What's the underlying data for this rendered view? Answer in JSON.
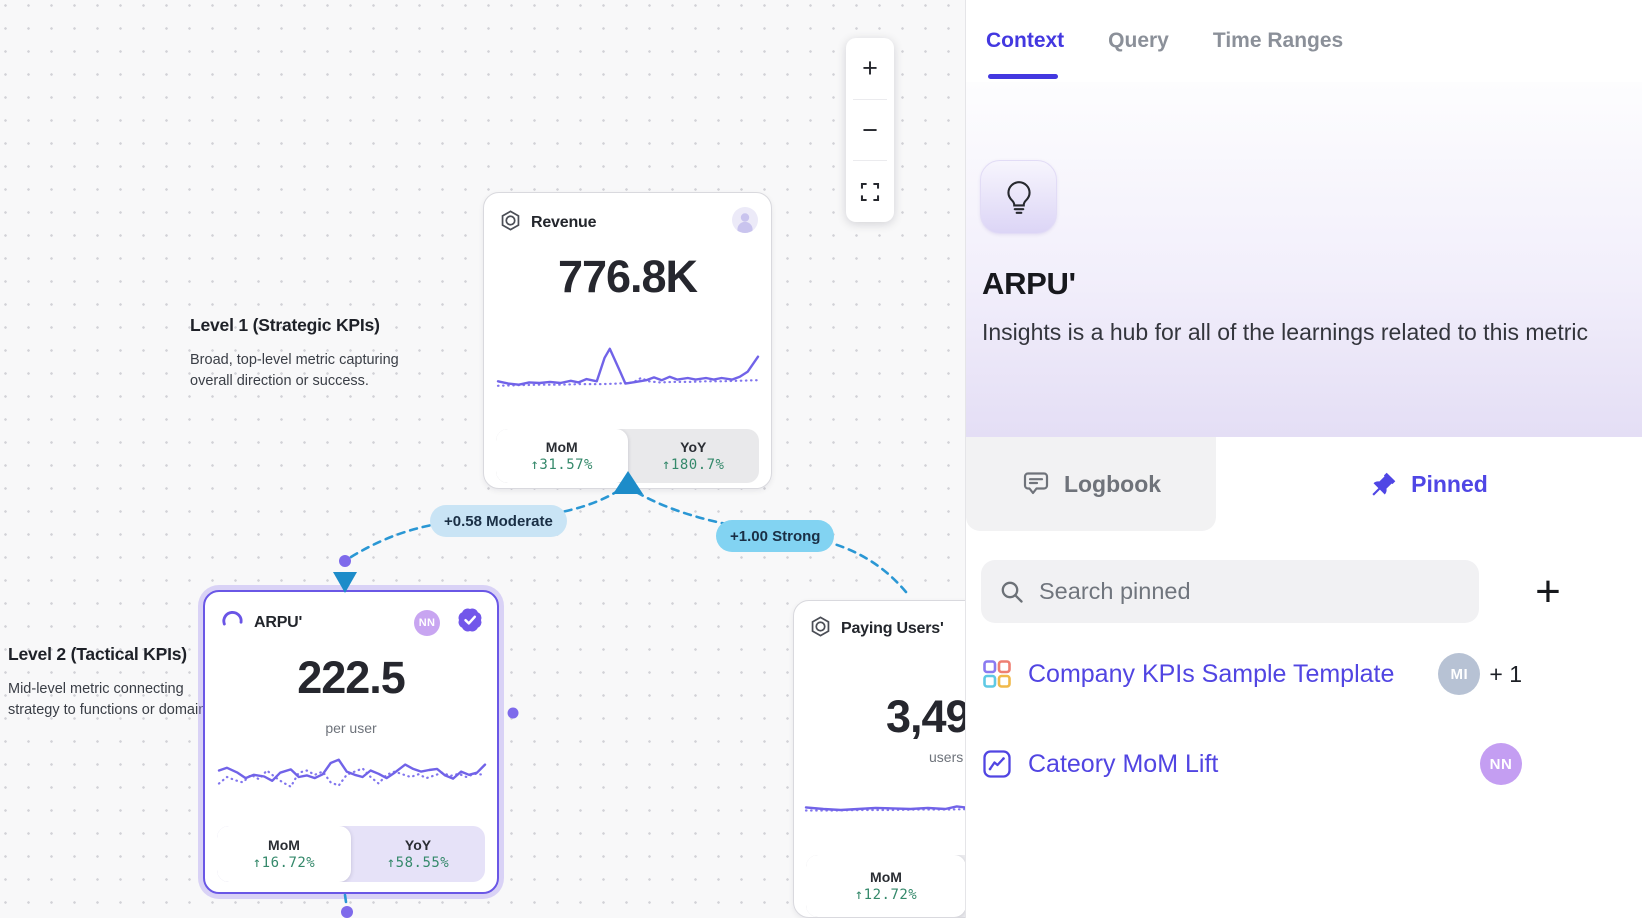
{
  "colors": {
    "accent_purple": "#4f46e5",
    "selected_card_border": "#6a57e6",
    "edge_blue": "#2a97d4",
    "positive_green": "#35896b",
    "badge_moderate_bg": "#c9e4f5",
    "badge_strong_bg": "#82d3f2",
    "sparkline_purple": "#7163e8"
  },
  "canvas": {
    "toolbar": {
      "zoom_in": "+",
      "zoom_out": "−",
      "fit_icon": "fit-view-icon"
    },
    "levels": {
      "level1": {
        "title": "Level 1 (Strategic KPIs)",
        "line1": "Broad, top-level metric capturing",
        "line2": "overall direction or success."
      },
      "level2": {
        "title": "Level 2 (Tactical KPIs)",
        "line1": "Mid-level metric connecting",
        "line2": "strategy to functions or domains."
      }
    },
    "edges": {
      "moderate": "+0.58 Moderate",
      "strong": "+1.00 Strong"
    },
    "cards": {
      "revenue": {
        "title": "Revenue",
        "value": "776.8K",
        "stats": {
          "mom_label": "MoM",
          "mom_delta": "↑31.57%",
          "yoy_label": "YoY",
          "yoy_delta": "↑180.7%"
        },
        "spark": {
          "solid": [
            [
              0,
              72
            ],
            [
              4,
              76
            ],
            [
              8,
              78
            ],
            [
              12,
              74
            ],
            [
              16,
              75
            ],
            [
              20,
              73
            ],
            [
              24,
              75
            ],
            [
              28,
              71
            ],
            [
              31,
              74
            ],
            [
              34,
              68
            ],
            [
              38,
              72
            ],
            [
              41,
              30
            ],
            [
              43,
              14
            ],
            [
              47,
              55
            ],
            [
              49,
              76
            ],
            [
              53,
              73
            ],
            [
              57,
              70
            ],
            [
              60,
              65
            ],
            [
              63,
              70
            ],
            [
              66,
              64
            ],
            [
              69,
              69
            ],
            [
              73,
              66
            ],
            [
              76,
              69
            ],
            [
              80,
              66
            ],
            [
              83,
              69
            ],
            [
              86,
              66
            ],
            [
              90,
              69
            ],
            [
              93,
              64
            ],
            [
              96,
              55
            ],
            [
              100,
              28
            ]
          ],
          "dotted": [
            [
              0,
              80
            ],
            [
              8,
              79
            ],
            [
              16,
              78
            ],
            [
              24,
              78
            ],
            [
              32,
              77
            ],
            [
              40,
              77
            ],
            [
              46,
              76
            ],
            [
              52,
              74
            ],
            [
              55,
              66
            ],
            [
              58,
              72
            ],
            [
              62,
              74
            ],
            [
              68,
              73
            ],
            [
              74,
              73
            ],
            [
              80,
              72
            ],
            [
              86,
              72
            ],
            [
              92,
              71
            ],
            [
              100,
              70
            ]
          ]
        }
      },
      "arpu": {
        "title": "ARPU'",
        "value": "222.5",
        "unit": "per user",
        "avatar": "NN",
        "stats": {
          "mom_label": "MoM",
          "mom_delta": "↑16.72%",
          "yoy_label": "YoY",
          "yoy_delta": "↑58.55%"
        },
        "spark": {
          "solid": [
            [
              0,
              38
            ],
            [
              3,
              33
            ],
            [
              7,
              42
            ],
            [
              10,
              52
            ],
            [
              13,
              46
            ],
            [
              17,
              49
            ],
            [
              20,
              57
            ],
            [
              23,
              42
            ],
            [
              27,
              36
            ],
            [
              30,
              50
            ],
            [
              33,
              47
            ],
            [
              36,
              52
            ],
            [
              39,
              45
            ],
            [
              42,
              24
            ],
            [
              45,
              18
            ],
            [
              48,
              40
            ],
            [
              51,
              46
            ],
            [
              54,
              50
            ],
            [
              57,
              38
            ],
            [
              60,
              44
            ],
            [
              63,
              52
            ],
            [
              66,
              42
            ],
            [
              70,
              27
            ],
            [
              73,
              35
            ],
            [
              76,
              40
            ],
            [
              79,
              37
            ],
            [
              82,
              35
            ],
            [
              85,
              47
            ],
            [
              88,
              53
            ],
            [
              91,
              40
            ],
            [
              94,
              46
            ],
            [
              97,
              42
            ],
            [
              100,
              27
            ]
          ],
          "dotted": [
            [
              0,
              62
            ],
            [
              3,
              50
            ],
            [
              6,
              56
            ],
            [
              9,
              60
            ],
            [
              12,
              46
            ],
            [
              15,
              54
            ],
            [
              18,
              38
            ],
            [
              21,
              50
            ],
            [
              24,
              60
            ],
            [
              27,
              68
            ],
            [
              30,
              42
            ],
            [
              33,
              38
            ],
            [
              36,
              46
            ],
            [
              39,
              40
            ],
            [
              42,
              60
            ],
            [
              45,
              66
            ],
            [
              48,
              46
            ],
            [
              51,
              40
            ],
            [
              54,
              34
            ],
            [
              57,
              50
            ],
            [
              60,
              62
            ],
            [
              63,
              46
            ],
            [
              66,
              40
            ],
            [
              69,
              45
            ],
            [
              72,
              50
            ],
            [
              75,
              45
            ],
            [
              78,
              52
            ],
            [
              81,
              47
            ],
            [
              84,
              42
            ],
            [
              87,
              48
            ],
            [
              90,
              44
            ],
            [
              93,
              50
            ],
            [
              96,
              44
            ],
            [
              100,
              46
            ]
          ]
        }
      },
      "paying": {
        "title": "Paying Users'",
        "value": "3,49",
        "unit": "users",
        "stats": {
          "mom_label": "MoM",
          "mom_delta": "↑12.72%"
        },
        "spark": {
          "solid": [
            [
              0,
              70
            ],
            [
              6,
              73
            ],
            [
              12,
              75
            ],
            [
              18,
              73
            ],
            [
              24,
              71
            ],
            [
              30,
              72
            ],
            [
              36,
              73
            ],
            [
              42,
              71
            ],
            [
              48,
              73
            ],
            [
              52,
              68
            ],
            [
              56,
              71
            ],
            [
              61,
              66
            ],
            [
              65,
              45
            ],
            [
              69,
              15
            ],
            [
              73,
              48
            ],
            [
              76,
              73
            ],
            [
              80,
              70
            ],
            [
              85,
              66
            ],
            [
              90,
              69
            ],
            [
              95,
              66
            ],
            [
              100,
              62
            ]
          ],
          "dotted": [
            [
              0,
              76
            ],
            [
              10,
              76
            ],
            [
              20,
              75
            ],
            [
              30,
              75
            ],
            [
              40,
              74
            ],
            [
              50,
              74
            ],
            [
              58,
              73
            ],
            [
              64,
              72
            ],
            [
              70,
              73
            ],
            [
              76,
              73
            ],
            [
              82,
              72
            ],
            [
              88,
              73
            ],
            [
              94,
              72
            ],
            [
              100,
              72
            ]
          ]
        }
      }
    }
  },
  "panel": {
    "tabs": [
      {
        "label": "Context"
      },
      {
        "label": "Query"
      },
      {
        "label": "Time Ranges"
      }
    ],
    "hero": {
      "icon": "lightbulb-icon",
      "title": "ARPU'",
      "description": "Insights is a hub for all of the learnings related to this metric"
    },
    "subtabs": {
      "logbook": "Logbook",
      "pinned": "Pinned"
    },
    "search": {
      "placeholder": "Search pinned",
      "add": "+"
    },
    "pinned_items": [
      {
        "icon": "grid-icon",
        "label": "Company KPIs Sample Template",
        "avatar": "MI",
        "extra": "+ 1"
      },
      {
        "icon": "chart-icon",
        "label": "Cateory MoM Lift",
        "avatar": "NN",
        "extra": ""
      }
    ]
  }
}
